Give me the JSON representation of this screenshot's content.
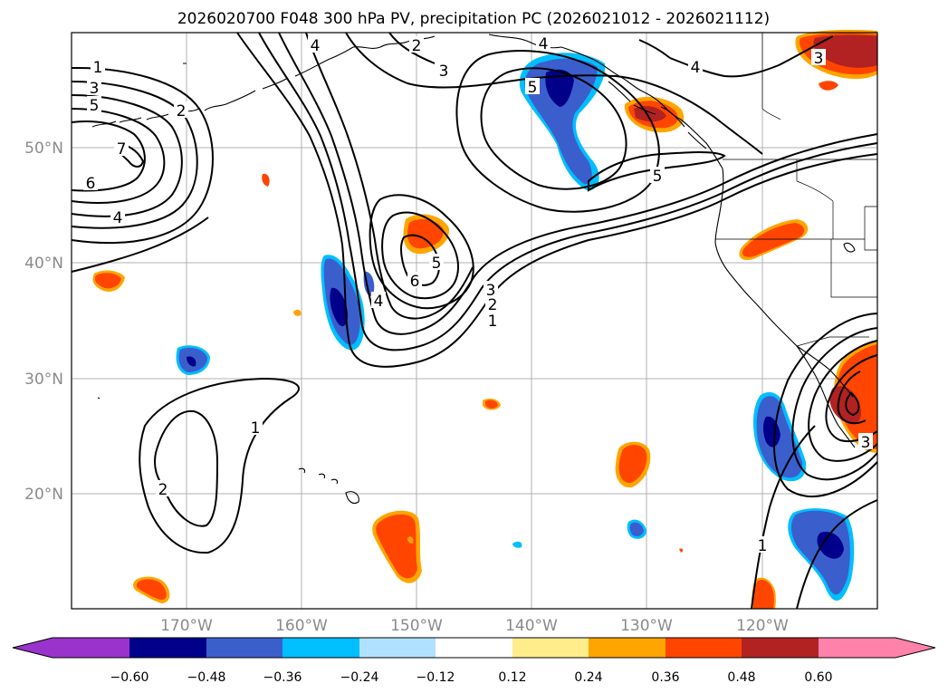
{
  "title": "2026020700 F048 300 hPa PV, precipitation PC (2026021012 - 2026021112)",
  "lat_labels": [
    "50°N",
    "40°N",
    "30°N",
    "20°N"
  ],
  "lon_labels": [
    "170°W",
    "160°W",
    "150°W",
    "140°W",
    "130°W",
    "120°W"
  ],
  "colorbar": {
    "ticks": [
      "−0.60",
      "−0.48",
      "−0.36",
      "−0.24",
      "−0.12",
      "0.12",
      "0.24",
      "0.36",
      "0.48",
      "0.60"
    ],
    "colors": [
      "#9933cc",
      "#00008b",
      "#3a5fcd",
      "#00bfff",
      "#b0e2ff",
      "#ffffff",
      "#ffec8b",
      "#ffa500",
      "#ff4500",
      "#b22222",
      "#ff82ab"
    ]
  },
  "contour_labels": [
    "1",
    "3",
    "5",
    "2",
    "7",
    "6",
    "4",
    "2",
    "3",
    "4",
    "5",
    "4",
    "3",
    "5",
    "6",
    "4",
    "3",
    "2",
    "1",
    "1",
    "2",
    "5",
    "4",
    "3",
    "1"
  ]
}
